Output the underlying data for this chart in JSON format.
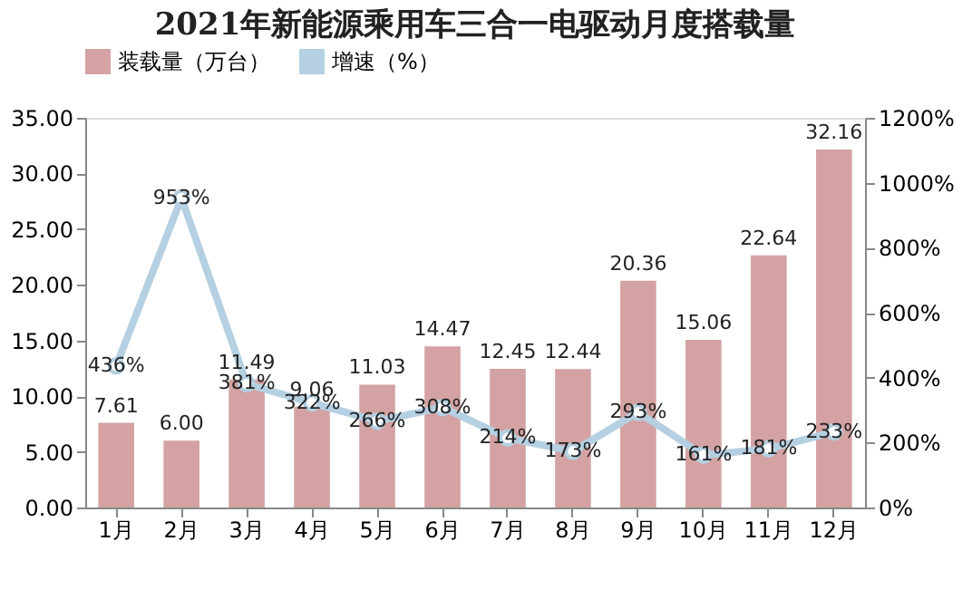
{
  "chart_data": {
    "type": "bar",
    "title": "2021年新能源乘用车三合一电驱动月度搭载量",
    "categories": [
      "1月",
      "2月",
      "3月",
      "4月",
      "5月",
      "6月",
      "7月",
      "8月",
      "9月",
      "10月",
      "11月",
      "12月"
    ],
    "series": [
      {
        "name": "装载量（万台）",
        "type": "bar",
        "color": "#d4a2a2",
        "values": [
          7.61,
          6.0,
          11.49,
          9.06,
          11.03,
          14.47,
          12.45,
          12.44,
          20.36,
          15.06,
          22.64,
          32.16
        ],
        "value_labels": [
          "7.61",
          "6.00",
          "11.49",
          "9.06",
          "11.03",
          "14.47",
          "12.45",
          "12.44",
          "20.36",
          "15.06",
          "22.64",
          "32.16"
        ]
      },
      {
        "name": "增速（%）",
        "type": "line",
        "axis": "y2",
        "color": "#b4d0e2",
        "values": [
          436,
          953,
          381,
          322,
          266,
          308,
          214,
          173,
          293,
          161,
          181,
          233
        ],
        "value_labels": [
          "436%",
          "953%",
          "381%",
          "322%",
          "266%",
          "308%",
          "214%",
          "173%",
          "293%",
          "161%",
          "181%",
          "233%"
        ]
      }
    ],
    "ylim": [
      0,
      35
    ],
    "yticks": [
      {
        "value": 0,
        "label": "0.00"
      },
      {
        "value": 5,
        "label": "5.00"
      },
      {
        "value": 10,
        "label": "10.00"
      },
      {
        "value": 15,
        "label": "15.00"
      },
      {
        "value": 20,
        "label": "20.00"
      },
      {
        "value": 25,
        "label": "25.00"
      },
      {
        "value": 30,
        "label": "30.00"
      },
      {
        "value": 35,
        "label": "35.00"
      }
    ],
    "y2lim": [
      0,
      1200
    ],
    "y2ticks": [
      {
        "value": 0,
        "label": "0%"
      },
      {
        "value": 200,
        "label": "200%"
      },
      {
        "value": 400,
        "label": "400%"
      },
      {
        "value": 600,
        "label": "600%"
      },
      {
        "value": 800,
        "label": "800%"
      },
      {
        "value": 1000,
        "label": "1000%"
      },
      {
        "value": 1200,
        "label": "1200%"
      }
    ],
    "data_labels": true,
    "grid": false,
    "legend": "top",
    "marker": "circle",
    "line_style": "solid"
  }
}
